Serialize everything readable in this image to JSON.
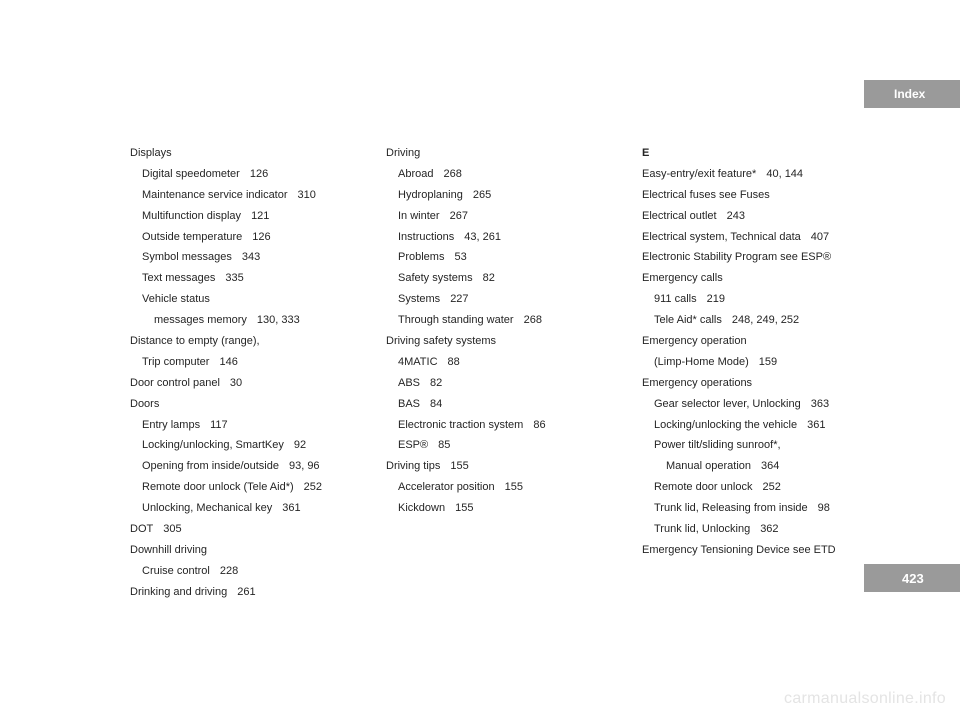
{
  "header": {
    "title": "Index"
  },
  "page_number": "423",
  "watermark": "carmanualsonline.info",
  "columns": [
    [
      {
        "indent": 0,
        "text": "Displays",
        "page": ""
      },
      {
        "indent": 1,
        "text": "Digital speedometer",
        "page": "126"
      },
      {
        "indent": 1,
        "text": "Maintenance service indicator",
        "page": "310"
      },
      {
        "indent": 1,
        "text": "Multifunction display",
        "page": "121"
      },
      {
        "indent": 1,
        "text": "Outside temperature",
        "page": "126"
      },
      {
        "indent": 1,
        "text": "Symbol messages",
        "page": "343"
      },
      {
        "indent": 1,
        "text": "Text messages",
        "page": "335"
      },
      {
        "indent": 1,
        "text": "Vehicle status",
        "page": ""
      },
      {
        "indent": 2,
        "text": "messages memory",
        "page": "130, 333"
      },
      {
        "indent": 0,
        "text": "Distance to empty (range),",
        "page": ""
      },
      {
        "indent": 1,
        "text": "Trip computer",
        "page": "146"
      },
      {
        "indent": 0,
        "text": "Door control panel",
        "page": "30"
      },
      {
        "indent": 0,
        "text": "Doors",
        "page": ""
      },
      {
        "indent": 1,
        "text": "Entry lamps",
        "page": "117"
      },
      {
        "indent": 1,
        "text": "Locking/unlocking, SmartKey",
        "page": "92"
      },
      {
        "indent": 1,
        "text": "Opening from inside/outside",
        "page": "93, 96"
      },
      {
        "indent": 1,
        "text": "Remote door unlock (Tele Aid*)",
        "page": "252"
      },
      {
        "indent": 1,
        "text": "Unlocking, Mechanical key",
        "page": "361"
      },
      {
        "indent": 0,
        "text": "DOT",
        "page": "305"
      },
      {
        "indent": 0,
        "text": "Downhill driving",
        "page": ""
      },
      {
        "indent": 1,
        "text": "Cruise control",
        "page": "228"
      },
      {
        "indent": 0,
        "text": "Drinking and driving",
        "page": "261"
      }
    ],
    [
      {
        "indent": 0,
        "text": "Driving",
        "page": ""
      },
      {
        "indent": 1,
        "text": "Abroad",
        "page": "268"
      },
      {
        "indent": 1,
        "text": "Hydroplaning",
        "page": "265"
      },
      {
        "indent": 1,
        "text": "In winter",
        "page": "267"
      },
      {
        "indent": 1,
        "text": "Instructions",
        "page": "43, 261"
      },
      {
        "indent": 1,
        "text": "Problems",
        "page": "53"
      },
      {
        "indent": 1,
        "text": "Safety systems",
        "page": "82"
      },
      {
        "indent": 1,
        "text": "Systems",
        "page": "227"
      },
      {
        "indent": 1,
        "text": "Through standing water",
        "page": "268"
      },
      {
        "indent": 0,
        "text": "Driving safety systems",
        "page": ""
      },
      {
        "indent": 1,
        "text": "4MATIC",
        "page": "88"
      },
      {
        "indent": 1,
        "text": "ABS",
        "page": "82"
      },
      {
        "indent": 1,
        "text": "BAS",
        "page": "84"
      },
      {
        "indent": 1,
        "text": "Electronic traction system",
        "page": "86"
      },
      {
        "indent": 1,
        "text": "ESP®",
        "page": "85"
      },
      {
        "indent": 0,
        "text": "Driving tips",
        "page": "155"
      },
      {
        "indent": 1,
        "text": "Accelerator position",
        "page": "155"
      },
      {
        "indent": 1,
        "text": "Kickdown",
        "page": "155"
      }
    ],
    [
      {
        "indent": 0,
        "text": "E",
        "page": "",
        "bold": true
      },
      {
        "indent": 0,
        "text": "Easy-entry/exit feature*",
        "page": "40, 144"
      },
      {
        "indent": 0,
        "text": "Electrical fuses see Fuses",
        "page": ""
      },
      {
        "indent": 0,
        "text": "Electrical outlet",
        "page": "243"
      },
      {
        "indent": 0,
        "text": "Electrical system, Technical data",
        "page": "407"
      },
      {
        "indent": 0,
        "text": "Electronic Stability Program see ESP®",
        "page": ""
      },
      {
        "indent": 0,
        "text": "Emergency calls",
        "page": ""
      },
      {
        "indent": 1,
        "text": "911 calls",
        "page": "219"
      },
      {
        "indent": 1,
        "text": "Tele Aid* calls",
        "page": "248, 249, 252"
      },
      {
        "indent": 0,
        "text": "Emergency operation",
        "page": ""
      },
      {
        "indent": 1,
        "text": "(Limp-Home Mode)",
        "page": "159"
      },
      {
        "indent": 0,
        "text": "Emergency operations",
        "page": ""
      },
      {
        "indent": 1,
        "text": "Gear selector lever, Unlocking",
        "page": "363"
      },
      {
        "indent": 1,
        "text": "Locking/unlocking the vehicle",
        "page": "361"
      },
      {
        "indent": 1,
        "text": "Power tilt/sliding sunroof*,",
        "page": ""
      },
      {
        "indent": 2,
        "text": "Manual operation",
        "page": "364"
      },
      {
        "indent": 1,
        "text": "Remote door unlock",
        "page": "252"
      },
      {
        "indent": 1,
        "text": "Trunk lid, Releasing from inside",
        "page": "98"
      },
      {
        "indent": 1,
        "text": "Trunk lid, Unlocking",
        "page": "362"
      },
      {
        "indent": 0,
        "text": "Emergency Tensioning Device see ETD",
        "page": ""
      }
    ]
  ]
}
